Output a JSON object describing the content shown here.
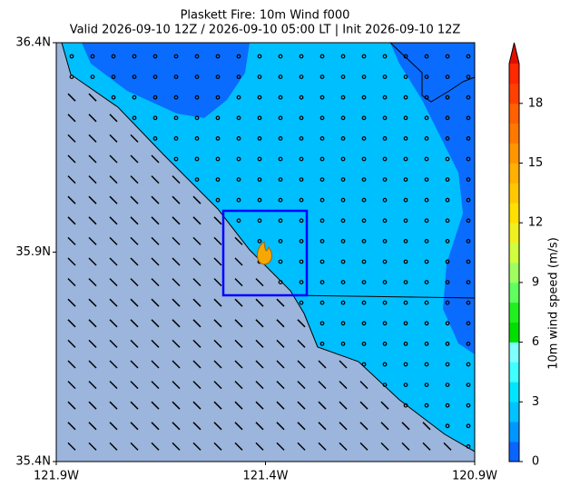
{
  "chart_data": {
    "type": "map",
    "title": "Plaskett Fire: 10m Wind f000",
    "subtitle": "Valid 2026-09-10 12Z / 2026-09-10 05:00 LT | Init 2026-09-10 12Z",
    "xlim": [
      -121.9,
      -120.9
    ],
    "ylim": [
      35.4,
      36.4
    ],
    "xticks": [
      {
        "value": -121.9,
        "label": "121.9W"
      },
      {
        "value": -121.4,
        "label": "121.4W"
      },
      {
        "value": -120.9,
        "label": "120.9W"
      }
    ],
    "yticks": [
      {
        "value": 35.4,
        "label": "35.4N"
      },
      {
        "value": 35.9,
        "label": "35.9N"
      },
      {
        "value": 36.4,
        "label": "36.4N"
      }
    ],
    "colorbar": {
      "label": "10m wind speed (m/s)",
      "lim": [
        0,
        20
      ],
      "ticks": [
        0,
        3,
        6,
        9,
        12,
        15,
        18
      ],
      "colors": [
        "#0a64ff",
        "#0096ff",
        "#00c3ff",
        "#00e6ff",
        "#40ffff",
        "#80ffff",
        "#00e000",
        "#20f020",
        "#60ff60",
        "#a0ff60",
        "#d0ff40",
        "#f0f020",
        "#ffe000",
        "#ffc800",
        "#ffb000",
        "#ff9600",
        "#ff7800",
        "#ff6000",
        "#ff4000",
        "#ff2800"
      ],
      "extend_color": "#e01000"
    }
  }
}
